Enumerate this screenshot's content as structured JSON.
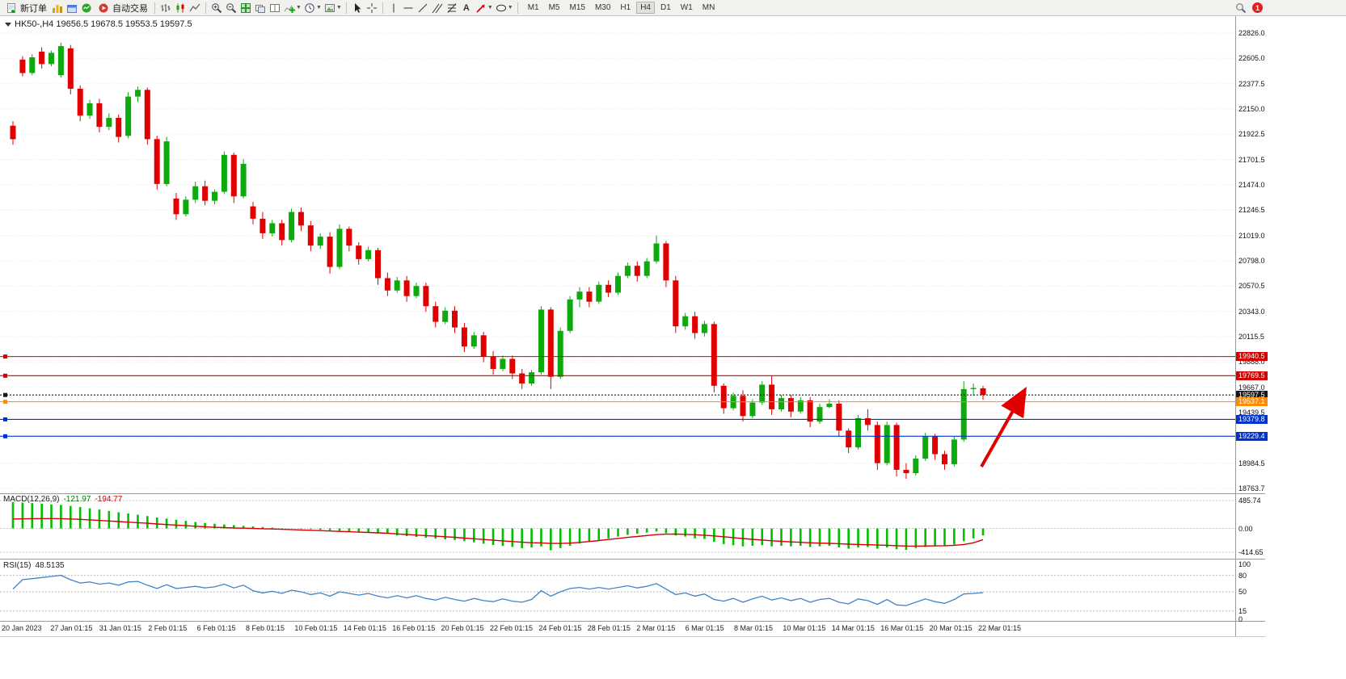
{
  "toolbar": {
    "new_order_label": "新订单",
    "auto_trading_label": "自动交易",
    "timeframes": [
      "M1",
      "M5",
      "M15",
      "M30",
      "H1",
      "H4",
      "D1",
      "W1",
      "MN"
    ],
    "active_timeframe": "H4",
    "notification_badge": "1",
    "text_tool_label": "A"
  },
  "chart_header": {
    "symbol_period": "HK50-,H4",
    "ohlc": "19656.5 19678.5 19553.5 19597.5"
  },
  "price_scale": [
    "22826.0",
    "22605.0",
    "22377.5",
    "22150.0",
    "21922.5",
    "21701.5",
    "21474.0",
    "21246.5",
    "21019.0",
    "20798.0",
    "20570.5",
    "20343.0",
    "20115.5",
    "19888.0",
    "19667.0",
    "19439.5",
    "19211.5",
    "18984.5",
    "18763.7"
  ],
  "price_lines": [
    {
      "price": 19940.5,
      "label": "19940.5",
      "color": "#d40000",
      "style": "solid"
    },
    {
      "price": 19769.5,
      "label": "19769.5",
      "color": "#d40000",
      "style": "solid"
    },
    {
      "price": 19597.5,
      "label": "19597.5",
      "color": "#16161e",
      "style": "dotted"
    },
    {
      "price": 19537.1,
      "label": "19537.1",
      "color": "#ff8c00",
      "style": "solid"
    },
    {
      "price": 19379.8,
      "label": "19379.8",
      "color": "#0033cc",
      "style": "solid"
    },
    {
      "price": 19229.4,
      "label": "19229.4",
      "color": "#0033cc",
      "style": "solid"
    }
  ],
  "time_scale": [
    "20 Jan 2023",
    "27 Jan 01:15",
    "31 Jan 01:15",
    "2 Feb 01:15",
    "6 Feb 01:15",
    "8 Feb 01:15",
    "10 Feb 01:15",
    "14 Feb 01:15",
    "16 Feb 01:15",
    "20 Feb 01:15",
    "22 Feb 01:15",
    "24 Feb 01:15",
    "28 Feb 01:15",
    "2 Mar 01:15",
    "6 Mar 01:15",
    "8 Mar 01:15",
    "10 Mar 01:15",
    "14 Mar 01:15",
    "16 Mar 01:15",
    "20 Mar 01:15",
    "22 Mar 01:15"
  ],
  "macd_panel": {
    "label": "MACD(12,26,9)",
    "value_main": "-121.97",
    "value_signal": "-194.77",
    "scale": [
      "485.74",
      "0.00",
      "-414.65"
    ]
  },
  "rsi_panel": {
    "label": "RSI(15)",
    "value": "48.5135",
    "scale": [
      "100",
      "80",
      "50",
      "15",
      "0"
    ],
    "levels": [
      80,
      50,
      15
    ]
  },
  "annotations": {
    "arrow": {
      "color": "#e00000"
    }
  },
  "chart_data": [
    {
      "type": "candlestick",
      "name": "HK50- H4 price",
      "price_range": [
        18763.7,
        22826.0
      ],
      "up_color": "#0caa0c",
      "down_color": "#e00000",
      "candles": [
        [
          22000,
          22040,
          21830,
          21880
        ],
        [
          22590,
          22620,
          22440,
          22470
        ],
        [
          22470,
          22640,
          22450,
          22610
        ],
        [
          22660,
          22700,
          22510,
          22550
        ],
        [
          22550,
          22670,
          22530,
          22650
        ],
        [
          22450,
          22740,
          22430,
          22710
        ],
        [
          22690,
          22720,
          22280,
          22330
        ],
        [
          22330,
          22360,
          22040,
          22090
        ],
        [
          22090,
          22230,
          22060,
          22200
        ],
        [
          22200,
          22240,
          21940,
          21990
        ],
        [
          21990,
          22110,
          21960,
          22070
        ],
        [
          22070,
          22100,
          21850,
          21900
        ],
        [
          21910,
          22300,
          21890,
          22260
        ],
        [
          22260,
          22350,
          22210,
          22320
        ],
        [
          22320,
          22340,
          21830,
          21880
        ],
        [
          21880,
          21910,
          21430,
          21480
        ],
        [
          21480,
          21900,
          21460,
          21860
        ],
        [
          21350,
          21400,
          21160,
          21210
        ],
        [
          21210,
          21370,
          21190,
          21340
        ],
        [
          21340,
          21500,
          21310,
          21460
        ],
        [
          21460,
          21510,
          21290,
          21330
        ],
        [
          21330,
          21430,
          21300,
          21410
        ],
        [
          21410,
          21770,
          21390,
          21740
        ],
        [
          21740,
          21760,
          21310,
          21370
        ],
        [
          21370,
          21700,
          21350,
          21660
        ],
        [
          21280,
          21320,
          21120,
          21170
        ],
        [
          21170,
          21230,
          20990,
          21040
        ],
        [
          21040,
          21160,
          21010,
          21130
        ],
        [
          21130,
          21160,
          20930,
          20980
        ],
        [
          20980,
          21260,
          20960,
          21230
        ],
        [
          21230,
          21270,
          21060,
          21110
        ],
        [
          21110,
          21150,
          20880,
          20930
        ],
        [
          20930,
          21040,
          20900,
          21010
        ],
        [
          21010,
          21050,
          20680,
          20740
        ],
        [
          20740,
          21120,
          20720,
          21080
        ],
        [
          21080,
          21100,
          20880,
          20930
        ],
        [
          20930,
          20960,
          20760,
          20810
        ],
        [
          20810,
          20920,
          20790,
          20890
        ],
        [
          20890,
          20910,
          20580,
          20640
        ],
        [
          20640,
          20690,
          20480,
          20530
        ],
        [
          20530,
          20650,
          20510,
          20620
        ],
        [
          20620,
          20660,
          20430,
          20480
        ],
        [
          20480,
          20600,
          20460,
          20570
        ],
        [
          20570,
          20600,
          20340,
          20390
        ],
        [
          20390,
          20430,
          20200,
          20250
        ],
        [
          20250,
          20380,
          20230,
          20350
        ],
        [
          20350,
          20390,
          20150,
          20200
        ],
        [
          20200,
          20240,
          19980,
          20030
        ],
        [
          20030,
          20160,
          20010,
          20130
        ],
        [
          20130,
          20160,
          19890,
          19940
        ],
        [
          19940,
          19990,
          19780,
          19830
        ],
        [
          19830,
          19950,
          19810,
          19920
        ],
        [
          19920,
          19950,
          19740,
          19790
        ],
        [
          19790,
          19830,
          19650,
          19700
        ],
        [
          19700,
          19820,
          19680,
          19800
        ],
        [
          19800,
          20390,
          19780,
          20360
        ],
        [
          20360,
          20380,
          19650,
          19760
        ],
        [
          19760,
          20200,
          19740,
          20170
        ],
        [
          20170,
          20480,
          20150,
          20450
        ],
        [
          20450,
          20560,
          20380,
          20520
        ],
        [
          20520,
          20560,
          20380,
          20430
        ],
        [
          20430,
          20610,
          20410,
          20580
        ],
        [
          20580,
          20620,
          20470,
          20510
        ],
        [
          20510,
          20690,
          20490,
          20660
        ],
        [
          20660,
          20780,
          20640,
          20750
        ],
        [
          20750,
          20790,
          20610,
          20660
        ],
        [
          20660,
          20820,
          20640,
          20790
        ],
        [
          20790,
          21020,
          20770,
          20950
        ],
        [
          20950,
          20970,
          20560,
          20620
        ],
        [
          20620,
          20660,
          20150,
          20210
        ],
        [
          20210,
          20330,
          20180,
          20300
        ],
        [
          20300,
          20340,
          20100,
          20150
        ],
        [
          20150,
          20260,
          20120,
          20230
        ],
        [
          20230,
          20250,
          19620,
          19680
        ],
        [
          19680,
          19700,
          19430,
          19480
        ],
        [
          19480,
          19620,
          19460,
          19590
        ],
        [
          19590,
          19640,
          19360,
          19410
        ],
        [
          19410,
          19560,
          19390,
          19530
        ],
        [
          19530,
          19720,
          19510,
          19690
        ],
        [
          19690,
          19770,
          19420,
          19470
        ],
        [
          19470,
          19600,
          19450,
          19570
        ],
        [
          19570,
          19600,
          19400,
          19450
        ],
        [
          19450,
          19580,
          19430,
          19550
        ],
        [
          19550,
          19580,
          19310,
          19360
        ],
        [
          19360,
          19520,
          19340,
          19490
        ],
        [
          19490,
          19560,
          19480,
          19520
        ],
        [
          19520,
          19550,
          19230,
          19280
        ],
        [
          19280,
          19300,
          19080,
          19130
        ],
        [
          19130,
          19420,
          19110,
          19390
        ],
        [
          19390,
          19470,
          19280,
          19330
        ],
        [
          19330,
          19360,
          18930,
          18990
        ],
        [
          18990,
          19360,
          18970,
          19330
        ],
        [
          19330,
          19350,
          18870,
          18930
        ],
        [
          18930,
          18990,
          18850,
          18900
        ],
        [
          18900,
          19060,
          18880,
          19030
        ],
        [
          19030,
          19260,
          19010,
          19230
        ],
        [
          19230,
          19250,
          19020,
          19070
        ],
        [
          19070,
          19100,
          18930,
          18980
        ],
        [
          18980,
          19230,
          18960,
          19200
        ],
        [
          19200,
          19720,
          19180,
          19650
        ],
        [
          19650,
          19700,
          19590,
          19660
        ],
        [
          19656.5,
          19678.5,
          19553.5,
          19597.5
        ]
      ]
    },
    {
      "type": "bar",
      "name": "MACD histogram",
      "color": "#00c000",
      "range": [
        -414.65,
        485.74
      ],
      "values": [
        460,
        452,
        444,
        432,
        420,
        410,
        392,
        372,
        350,
        330,
        305,
        282,
        260,
        240,
        216,
        192,
        172,
        152,
        132,
        112,
        96,
        82,
        70,
        58,
        46,
        34,
        24,
        14,
        6,
        0,
        -8,
        -14,
        -22,
        -32,
        -40,
        -50,
        -60,
        -68,
        -78,
        -88,
        -120,
        -135,
        -148,
        -162,
        -176,
        -188,
        -202,
        -222,
        -242,
        -265,
        -288,
        -305,
        -322,
        -345,
        -332,
        -312,
        -380,
        -342,
        -300,
        -262,
        -230,
        -200,
        -172,
        -142,
        -112,
        -92,
        -72,
        -52,
        -82,
        -122,
        -142,
        -172,
        -182,
        -232,
        -272,
        -292,
        -312,
        -302,
        -292,
        -312,
        -302,
        -312,
        -302,
        -322,
        -312,
        -302,
        -332,
        -352,
        -332,
        -322,
        -352,
        -332,
        -362,
        -372,
        -342,
        -322,
        -312,
        -302,
        -282,
        -222,
        -172,
        -121.97
      ]
    },
    {
      "type": "line",
      "name": "MACD signal",
      "color": "#d40000",
      "values": [
        165,
        168,
        170,
        172,
        172,
        170,
        165,
        158,
        150,
        140,
        130,
        120,
        110,
        100,
        90,
        78,
        68,
        58,
        48,
        38,
        28,
        20,
        14,
        8,
        4,
        0,
        -5,
        -10,
        -15,
        -20,
        -26,
        -32,
        -38,
        -45,
        -52,
        -58,
        -64,
        -70,
        -77,
        -84,
        -95,
        -105,
        -115,
        -125,
        -135,
        -145,
        -155,
        -168,
        -180,
        -193,
        -205,
        -216,
        -228,
        -240,
        -248,
        -252,
        -262,
        -262,
        -255,
        -243,
        -228,
        -210,
        -192,
        -174,
        -156,
        -140,
        -124,
        -108,
        -100,
        -98,
        -102,
        -110,
        -118,
        -130,
        -145,
        -160,
        -176,
        -190,
        -202,
        -215,
        -225,
        -234,
        -241,
        -250,
        -256,
        -260,
        -266,
        -274,
        -280,
        -284,
        -290,
        -294,
        -300,
        -306,
        -308,
        -306,
        -304,
        -300,
        -294,
        -280,
        -250,
        -194.77
      ]
    },
    {
      "type": "line",
      "name": "RSI(15)",
      "color": "#4084c7",
      "range": [
        0,
        100
      ],
      "values": [
        55,
        72,
        74,
        76,
        78,
        80,
        72,
        66,
        68,
        64,
        66,
        62,
        68,
        69,
        62,
        56,
        63,
        56,
        58,
        60,
        57,
        59,
        64,
        57,
        62,
        52,
        48,
        51,
        47,
        53,
        50,
        45,
        48,
        42,
        50,
        47,
        44,
        47,
        42,
        39,
        43,
        39,
        43,
        38,
        35,
        40,
        36,
        33,
        38,
        34,
        32,
        37,
        33,
        31,
        36,
        52,
        42,
        50,
        56,
        58,
        55,
        58,
        55,
        58,
        61,
        57,
        60,
        65,
        55,
        45,
        48,
        42,
        46,
        36,
        33,
        38,
        31,
        37,
        42,
        35,
        39,
        34,
        38,
        31,
        36,
        38,
        31,
        28,
        37,
        34,
        27,
        36,
        26,
        25,
        31,
        37,
        32,
        29,
        36,
        46,
        47,
        48.5135
      ]
    }
  ]
}
